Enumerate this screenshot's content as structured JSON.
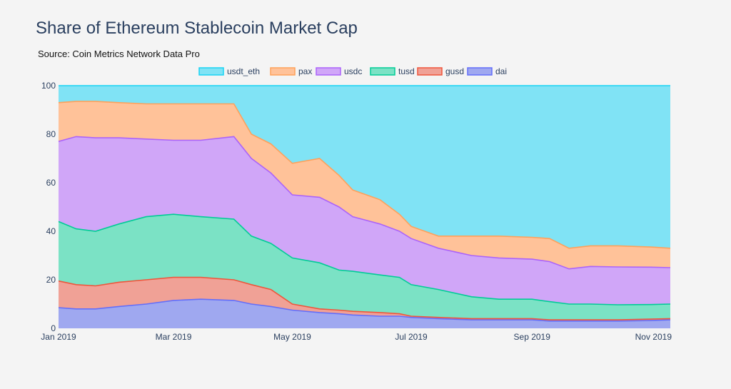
{
  "title": "Share of Ethereum Stablecoin Market Cap",
  "subtitle": "Source: Coin Metrics Network Data Pro",
  "chart_data": {
    "type": "area",
    "stacking": "cumulative",
    "x_ticks": [
      "Jan 2019",
      "Mar 2019",
      "May 2019",
      "Jul 2019",
      "Sep 2019",
      "Nov 2019"
    ],
    "y_ticks": [
      0,
      20,
      40,
      60,
      80,
      100
    ],
    "ylim": [
      0,
      100
    ],
    "xlim": [
      "2019-01-01",
      "2019-11-11"
    ],
    "grid": false,
    "legend_position": "top",
    "x": [
      "2019-01-01",
      "2019-01-10",
      "2019-01-20",
      "2019-02-01",
      "2019-02-15",
      "2019-03-01",
      "2019-03-15",
      "2019-04-01",
      "2019-04-10",
      "2019-04-20",
      "2019-05-01",
      "2019-05-15",
      "2019-05-25",
      "2019-06-01",
      "2019-06-15",
      "2019-06-25",
      "2019-07-01",
      "2019-07-15",
      "2019-08-01",
      "2019-08-15",
      "2019-09-01",
      "2019-09-10",
      "2019-09-20",
      "2019-10-01",
      "2019-10-15",
      "2019-11-01",
      "2019-11-11"
    ],
    "series": [
      {
        "name": "dai",
        "color": "#9fa8f0",
        "line_color": "#636efa",
        "values": [
          8.5,
          8,
          8,
          9,
          10,
          11.5,
          12,
          11.5,
          10,
          9,
          7.5,
          6.5,
          6,
          5.5,
          5,
          5,
          4.5,
          4,
          3.5,
          3.5,
          3.5,
          3,
          3,
          3,
          3,
          3.2,
          3.5
        ]
      },
      {
        "name": "gusd",
        "color": "#f0a196",
        "line_color": "#ef553b",
        "values": [
          19.5,
          18,
          17.5,
          19,
          20,
          21,
          21,
          20,
          18,
          16,
          10,
          8,
          7.5,
          7,
          6.5,
          6,
          5,
          4.5,
          4,
          4,
          4,
          3.5,
          3.5,
          3.5,
          3.5,
          3.8,
          4
        ]
      },
      {
        "name": "tusd",
        "color": "#7be2c5",
        "line_color": "#00cc96",
        "values": [
          44,
          41,
          40,
          43,
          46,
          47,
          46,
          45,
          38,
          35,
          29,
          27,
          24,
          23.5,
          22,
          21,
          18,
          16,
          13,
          12,
          12,
          11,
          10,
          10,
          9.7,
          9.8,
          10
        ]
      },
      {
        "name": "usdc",
        "color": "#d0a6f8",
        "line_color": "#ab63fa",
        "values": [
          77,
          79,
          78.5,
          78.5,
          78,
          77.5,
          77.5,
          79,
          70,
          64,
          55,
          54,
          50,
          46,
          43,
          40,
          37,
          33,
          30,
          29,
          28.5,
          27.5,
          24.5,
          25.5,
          25.3,
          25.2,
          25
        ]
      },
      {
        "name": "pax",
        "color": "#ffc299",
        "line_color": "#ffa15a",
        "values": [
          93,
          93.5,
          93.5,
          93,
          92.5,
          92.5,
          92.5,
          92.5,
          80,
          76,
          68,
          70,
          63,
          57,
          53,
          47,
          42,
          38,
          38,
          38,
          37.5,
          37,
          33,
          34,
          34,
          33.5,
          33
        ]
      },
      {
        "name": "usdt_eth",
        "color": "#80e3f5",
        "line_color": "#19d3f3",
        "values": [
          100,
          100,
          100,
          100,
          100,
          100,
          100,
          100,
          100,
          100,
          100,
          100,
          100,
          100,
          100,
          100,
          100,
          100,
          100,
          100,
          100,
          100,
          100,
          100,
          100,
          100,
          100
        ]
      }
    ]
  }
}
